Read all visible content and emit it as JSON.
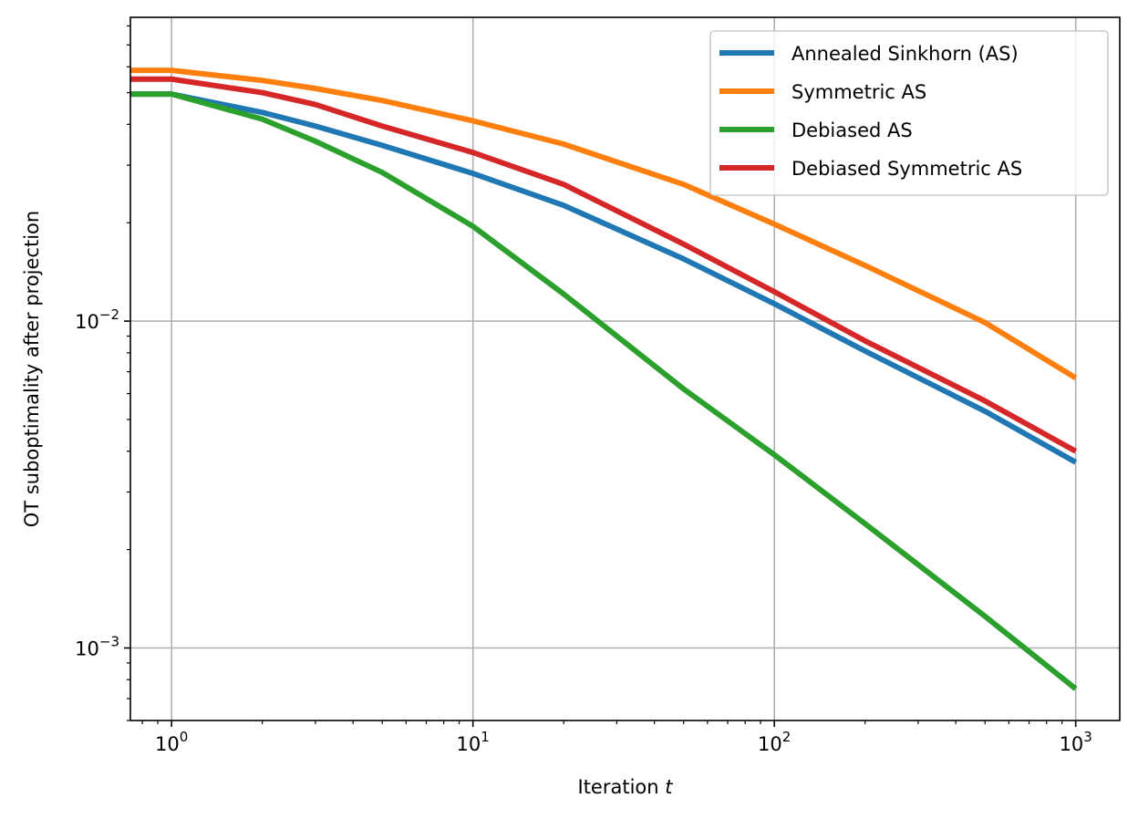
{
  "chart_data": {
    "type": "line",
    "title": "",
    "xlabel": "Iteration",
    "xlabel_var": "t",
    "ylabel": "OT suboptimality after projection",
    "xscale": "log",
    "yscale": "log",
    "xlim": [
      0.73,
      1400
    ],
    "ylim": [
      0.0006,
      0.085
    ],
    "grid": true,
    "legend_position": "top-right",
    "x_ticks": [
      {
        "value": 1,
        "base": "10",
        "exp": "0"
      },
      {
        "value": 10,
        "base": "10",
        "exp": "1"
      },
      {
        "value": 100,
        "base": "10",
        "exp": "2"
      },
      {
        "value": 1000,
        "base": "10",
        "exp": "3"
      }
    ],
    "y_ticks": [
      {
        "value": 0.001,
        "base": "10",
        "exp": "−3"
      },
      {
        "value": 0.01,
        "base": "10",
        "exp": "−2"
      }
    ],
    "x": [
      0.73,
      1,
      2,
      3,
      5,
      10,
      20,
      50,
      100,
      200,
      500,
      1000
    ],
    "series": [
      {
        "name": "Annealed Sinkhorn (AS)",
        "color": "#1f77b4",
        "values": [
          0.0495,
          0.0495,
          0.0435,
          0.0395,
          0.0345,
          0.0283,
          0.0226,
          0.0155,
          0.0113,
          0.0081,
          0.0053,
          0.0037
        ]
      },
      {
        "name": "Symmetric AS",
        "color": "#ff7f0e",
        "values": [
          0.0585,
          0.0585,
          0.0545,
          0.0515,
          0.0473,
          0.041,
          0.0348,
          0.0262,
          0.0198,
          0.0148,
          0.0099,
          0.0067
        ]
      },
      {
        "name": "Debiased AS",
        "color": "#2ca02c",
        "values": [
          0.0495,
          0.0495,
          0.0415,
          0.0355,
          0.0285,
          0.0195,
          0.0121,
          0.0062,
          0.0039,
          0.0024,
          0.00125,
          0.00075
        ]
      },
      {
        "name": "Debiased Symmetric AS",
        "color": "#d62728",
        "values": [
          0.055,
          0.055,
          0.05,
          0.046,
          0.0395,
          0.0328,
          0.0262,
          0.0172,
          0.0123,
          0.0087,
          0.0057,
          0.004
        ]
      }
    ]
  }
}
